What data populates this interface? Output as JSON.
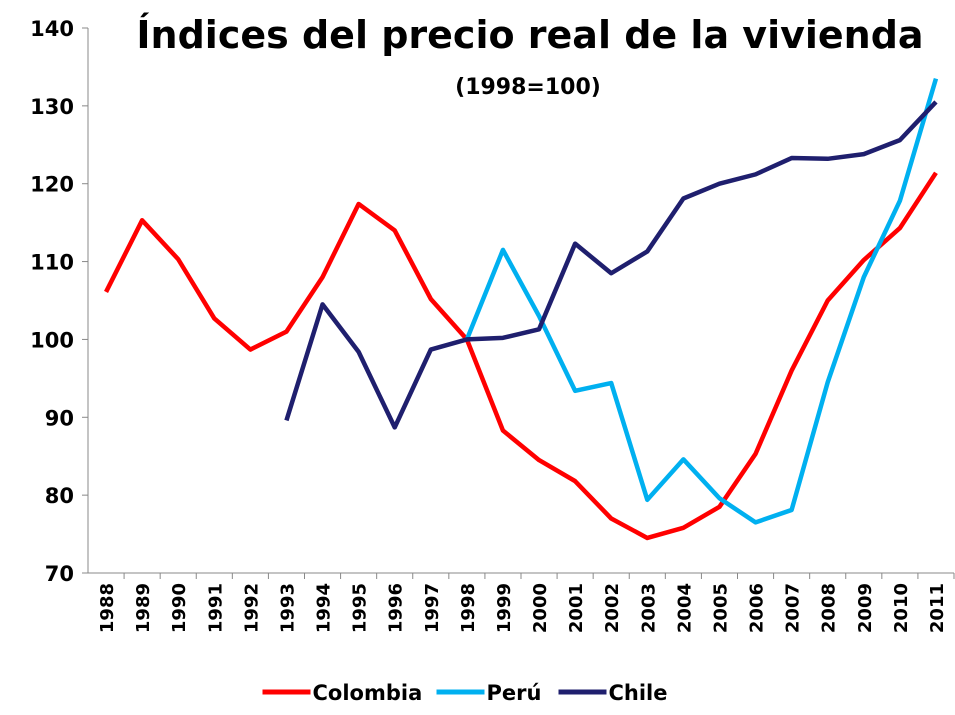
{
  "chart_data": {
    "type": "line",
    "title": "Índices del precio real de la vivienda",
    "subtitle": "(1998=100)",
    "categories": [
      "1988",
      "1989",
      "1990",
      "1991",
      "1992",
      "1993",
      "1994",
      "1995",
      "1996",
      "1997",
      "1998",
      "1999",
      "2000",
      "2001",
      "2002",
      "2003",
      "2004",
      "2005",
      "2006",
      "2007",
      "2008",
      "2009",
      "2010",
      "2011"
    ],
    "series": [
      {
        "name": "Colombia",
        "color": "#ff0000",
        "values": [
          106.1,
          115.3,
          110.3,
          102.7,
          98.7,
          101,
          108,
          117.4,
          114,
          105.2,
          100,
          88.3,
          84.5,
          81.8,
          77,
          74.5,
          75.8,
          78.5,
          85.3,
          96,
          105,
          110.2,
          114.3,
          121.4
        ]
      },
      {
        "name": "Perú",
        "color": "#00b0f0",
        "values": [
          null,
          null,
          null,
          null,
          null,
          null,
          null,
          null,
          null,
          null,
          100,
          111.5,
          103,
          93.4,
          94.4,
          79.4,
          84.6,
          79.6,
          76.5,
          78.1,
          94.5,
          108,
          117.8,
          133.5
        ]
      },
      {
        "name": "Chile",
        "color": "#1f1f6e",
        "values": [
          null,
          null,
          null,
          null,
          null,
          89.6,
          104.5,
          98.4,
          88.7,
          98.7,
          100,
          100.2,
          101.3,
          112.3,
          108.5,
          111.3,
          118.1,
          120,
          121.2,
          123.3,
          123.2,
          123.8,
          125.6,
          130.5
        ]
      }
    ],
    "ylim": [
      70,
      140
    ],
    "yticks": [
      70,
      80,
      90,
      100,
      110,
      120,
      130,
      140
    ],
    "grid": false,
    "legend": "bottom"
  }
}
